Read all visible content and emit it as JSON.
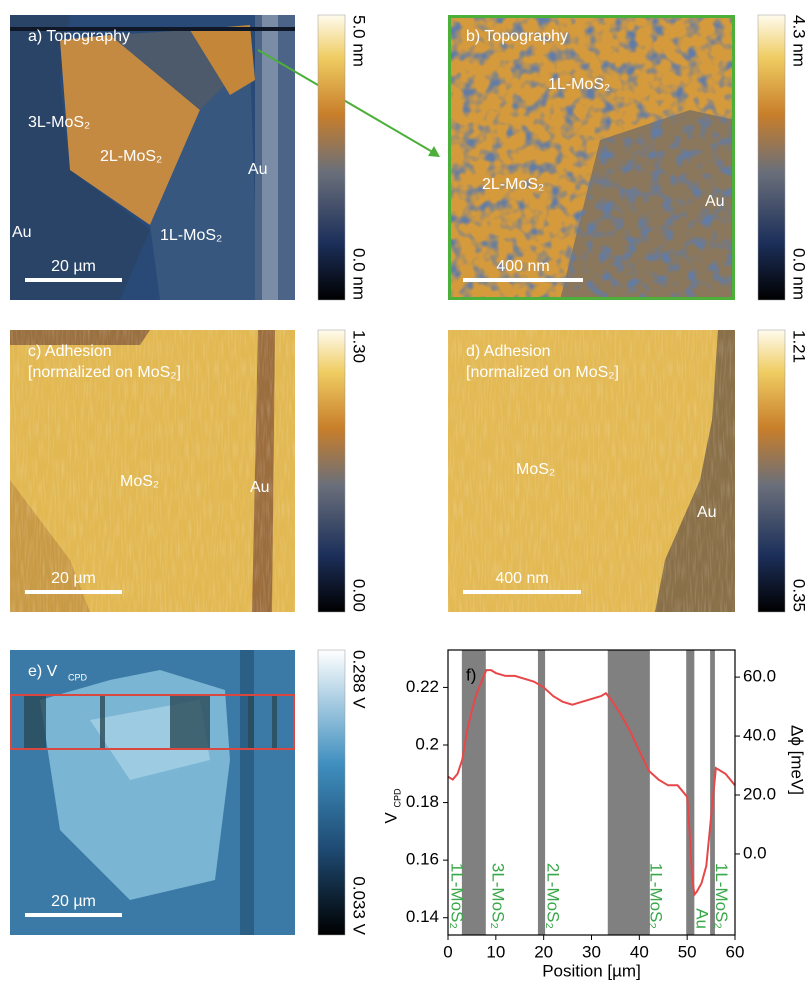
{
  "panels": [
    {
      "label": "a) Topography",
      "annotations": [
        "3L-MoS₂",
        "2L-MoS₂",
        "Au",
        "Au",
        "1L-MoS₂"
      ],
      "scale_bar": "20 µm",
      "colorbar": {
        "max": "5.0 nm",
        "min": "0.0 nm"
      }
    },
    {
      "label": "b) Topography",
      "annotations": [
        "1L-MoS₂",
        "2L-MoS₂",
        "Au"
      ],
      "scale_bar": "400 nm",
      "colorbar": {
        "max": "4.3 nm",
        "min": "0.0 nm"
      }
    },
    {
      "label": "c) Adhesion",
      "label_line2": "[normalized on MoS₂]",
      "annotations": [
        "MoS₂",
        "Au"
      ],
      "scale_bar": "20 µm",
      "colorbar": {
        "max": "1.30",
        "min": "0.00"
      }
    },
    {
      "label": "d) Adhesion",
      "label_line2": "[normalized on MoS₂]",
      "annotations": [
        "MoS₂",
        "Au"
      ],
      "scale_bar": "400 nm",
      "colorbar": {
        "max": "1.21",
        "min": "0.35"
      }
    },
    {
      "label": "e) V",
      "label_sub": "CPD",
      "annotations": [],
      "scale_bar": "20 µm",
      "colorbar": {
        "max": "0.288 V",
        "min": "0.033 V"
      }
    }
  ],
  "chart_data": {
    "type": "line",
    "panel_label": "f)",
    "x_label": "Position [µm]",
    "y_label": "V",
    "y_label_sub": "CPD",
    "y2_label": "Δϕ [meV]",
    "xlim": [
      0,
      60
    ],
    "xticks": [
      0,
      10,
      20,
      30,
      40,
      50,
      60
    ],
    "ylim": [
      0.134,
      0.233
    ],
    "yticks": [
      0.14,
      0.16,
      0.18,
      0.2,
      0.22
    ],
    "y2lim": [
      -27.5,
      69.2
    ],
    "y2ticks": [
      {
        "value": 0,
        "label": "0.0"
      },
      {
        "value": 20,
        "label": "20.0"
      },
      {
        "value": 40,
        "label": "40.0"
      },
      {
        "value": 60,
        "label": "60.0"
      }
    ],
    "bands": [
      [
        2.9,
        7.9
      ],
      [
        18.8,
        20.3
      ],
      [
        33.4,
        42.2
      ],
      [
        49.8,
        51.5
      ],
      [
        54.8,
        55.8
      ]
    ],
    "band_color": "#808080",
    "region_labels": [
      "1L-MoS₂",
      "3L-MoS₂",
      "2L-MoS₂",
      "1L-MoS₂",
      "Au",
      "1L-MoS₂"
    ],
    "region_color": "#3aa84a",
    "x": [
      0,
      1,
      2,
      3,
      4,
      5,
      6,
      7,
      8,
      9,
      10,
      12,
      14,
      16,
      18,
      20,
      22,
      24,
      26,
      28,
      30,
      32,
      33,
      34,
      36,
      38,
      40,
      42,
      44,
      46,
      48,
      49,
      50,
      50.5,
      51,
      51.5,
      52,
      53,
      54,
      55,
      56,
      58,
      60
    ],
    "series": [
      {
        "color": "#e8474a",
        "values": [
          0.189,
          0.188,
          0.19,
          0.195,
          0.205,
          0.212,
          0.218,
          0.222,
          0.226,
          0.226,
          0.225,
          0.224,
          0.224,
          0.223,
          0.222,
          0.22,
          0.217,
          0.215,
          0.214,
          0.215,
          0.216,
          0.217,
          0.218,
          0.216,
          0.211,
          0.205,
          0.198,
          0.191,
          0.188,
          0.186,
          0.186,
          0.184,
          0.182,
          0.17,
          0.155,
          0.148,
          0.149,
          0.152,
          0.158,
          0.175,
          0.192,
          0.19,
          0.186
        ]
      }
    ]
  }
}
